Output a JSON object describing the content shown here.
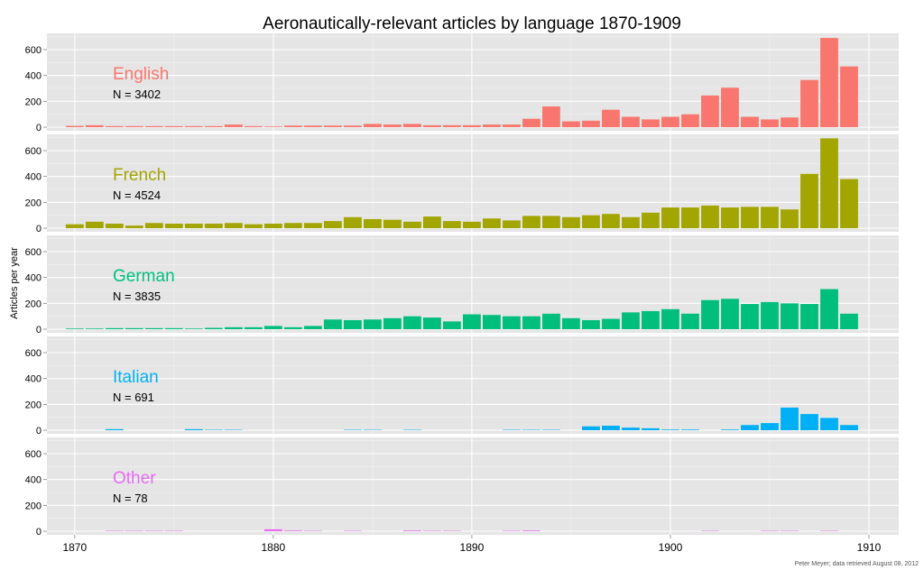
{
  "chart_data": {
    "type": "bar",
    "title": "Aeronautically-relevant articles by language 1870-1909",
    "ylabel": "Articles per year",
    "xlabel": "",
    "credit": "Peter Meyer; data retrieved August 08, 2012",
    "x_ticks": [
      1870,
      1880,
      1890,
      1900,
      1910
    ],
    "y_ticks": [
      0,
      200,
      400,
      600
    ],
    "xlim": [
      1868.6,
      1911.5
    ],
    "ylim": [
      0,
      700
    ],
    "years": [
      1870,
      1871,
      1872,
      1873,
      1874,
      1875,
      1876,
      1877,
      1878,
      1879,
      1880,
      1881,
      1882,
      1883,
      1884,
      1885,
      1886,
      1887,
      1888,
      1889,
      1890,
      1891,
      1892,
      1893,
      1894,
      1895,
      1896,
      1897,
      1898,
      1899,
      1900,
      1901,
      1902,
      1903,
      1904,
      1905,
      1906,
      1907,
      1908,
      1909
    ],
    "grid": true,
    "layout": "facets-stacked-vertically",
    "series": [
      {
        "name": "English",
        "n_label": "N = 3402",
        "color": "#F8766D",
        "values": [
          10,
          15,
          8,
          8,
          8,
          8,
          8,
          8,
          20,
          8,
          5,
          12,
          12,
          12,
          12,
          25,
          20,
          25,
          15,
          15,
          15,
          20,
          20,
          65,
          160,
          45,
          50,
          135,
          80,
          60,
          80,
          100,
          245,
          305,
          80,
          60,
          75,
          365,
          690,
          470
        ]
      },
      {
        "name": "French",
        "n_label": "N = 4524",
        "color": "#A3A500",
        "values": [
          30,
          50,
          35,
          20,
          40,
          35,
          35,
          35,
          40,
          30,
          35,
          40,
          40,
          55,
          85,
          70,
          65,
          50,
          90,
          55,
          50,
          75,
          60,
          95,
          95,
          85,
          100,
          110,
          85,
          120,
          160,
          160,
          175,
          160,
          165,
          165,
          145,
          420,
          695,
          380
        ]
      },
      {
        "name": "German",
        "n_label": "N = 3835",
        "color": "#00BF7D",
        "values": [
          5,
          5,
          8,
          8,
          8,
          8,
          5,
          10,
          15,
          15,
          25,
          15,
          25,
          75,
          70,
          75,
          85,
          100,
          90,
          60,
          115,
          110,
          100,
          100,
          120,
          85,
          70,
          80,
          130,
          140,
          155,
          120,
          225,
          235,
          195,
          210,
          200,
          195,
          310,
          120
        ]
      },
      {
        "name": "Italian",
        "n_label": "N = 691",
        "color": "#00B0F6",
        "values": [
          0,
          0,
          8,
          0,
          0,
          0,
          8,
          3,
          3,
          0,
          0,
          0,
          0,
          0,
          3,
          3,
          0,
          3,
          0,
          0,
          0,
          0,
          3,
          3,
          3,
          0,
          30,
          35,
          20,
          15,
          5,
          5,
          0,
          5,
          40,
          55,
          175,
          125,
          95,
          40
        ]
      },
      {
        "name": "Other",
        "n_label": "N = 78",
        "color": "#E76BF3",
        "values": [
          0,
          0,
          3,
          3,
          3,
          3,
          0,
          0,
          0,
          0,
          15,
          5,
          3,
          0,
          3,
          0,
          0,
          5,
          3,
          3,
          0,
          0,
          3,
          5,
          0,
          0,
          0,
          0,
          0,
          0,
          0,
          0,
          3,
          0,
          0,
          3,
          3,
          0,
          3,
          0
        ]
      }
    ]
  }
}
